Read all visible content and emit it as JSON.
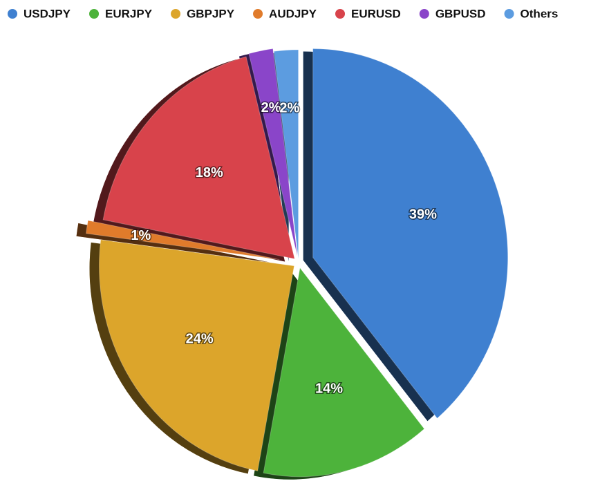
{
  "chart_data": {
    "type": "pie",
    "categories": [
      "USDJPY",
      "EURJPY",
      "GBPJPY",
      "AUDJPY",
      "EURUSD",
      "GBPUSD",
      "Others"
    ],
    "values": [
      39,
      14,
      24,
      1,
      18,
      2,
      2
    ],
    "value_labels": [
      "39%",
      "14%",
      "24%",
      "1%",
      "18%",
      "2%",
      "2%"
    ],
    "colors": [
      "#3f80d0",
      "#4db33b",
      "#dca52b",
      "#e07b2b",
      "#d8434b",
      "#8a45c9",
      "#5c9ce0"
    ],
    "legend": "top"
  }
}
